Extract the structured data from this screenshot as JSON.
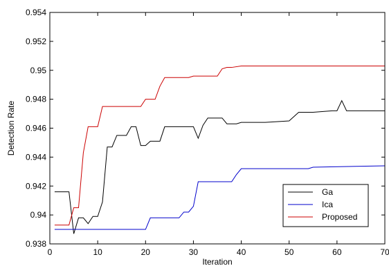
{
  "chart_data": {
    "type": "line",
    "xlabel": "Iteration",
    "ylabel": "Detection Rate",
    "xlim": [
      0,
      70
    ],
    "ylim": [
      0.938,
      0.954
    ],
    "xticks": [
      "0",
      "10",
      "20",
      "30",
      "40",
      "50",
      "60",
      "70"
    ],
    "yticks": [
      "0.938",
      "0.94",
      "0.942",
      "0.944",
      "0.946",
      "0.948",
      "0.95",
      "0.952",
      "0.954"
    ],
    "grid": false,
    "legend_position": "bottom-right",
    "series": [
      {
        "name": "Ga",
        "color": "#000000",
        "x": [
          1,
          4,
          5,
          6,
          7,
          8,
          9,
          10,
          11,
          12,
          13,
          14,
          15,
          16,
          17,
          18,
          19,
          20,
          21,
          22,
          23,
          24,
          25,
          30,
          31,
          32,
          33,
          36,
          37,
          38,
          39,
          40,
          45,
          50,
          52,
          55,
          59,
          60,
          61,
          62,
          70
        ],
        "y": [
          0.9416,
          0.9416,
          0.9387,
          0.9398,
          0.9398,
          0.9394,
          0.9399,
          0.9399,
          0.9409,
          0.9447,
          0.9447,
          0.9455,
          0.9455,
          0.9455,
          0.9461,
          0.9461,
          0.9448,
          0.9448,
          0.9451,
          0.9451,
          0.9451,
          0.9461,
          0.9461,
          0.9461,
          0.9453,
          0.9462,
          0.9467,
          0.9467,
          0.9463,
          0.9463,
          0.9463,
          0.9464,
          0.9464,
          0.9465,
          0.9471,
          0.9471,
          0.9472,
          0.9472,
          0.9479,
          0.9472,
          0.9472
        ]
      },
      {
        "name": "Ica",
        "color": "#0000cc",
        "x": [
          1,
          20,
          21,
          27,
          28,
          29,
          30,
          31,
          38,
          39,
          40,
          54,
          55,
          70
        ],
        "y": [
          0.939,
          0.939,
          0.9398,
          0.9398,
          0.9402,
          0.9402,
          0.9406,
          0.9423,
          0.9423,
          0.9428,
          0.9432,
          0.9432,
          0.9433,
          0.9434
        ]
      },
      {
        "name": "Proposed",
        "color": "#cc0000",
        "x": [
          1,
          4,
          5,
          6,
          7,
          8,
          9,
          10,
          11,
          12,
          19,
          20,
          22,
          23,
          24,
          25,
          29,
          30,
          35,
          36,
          37,
          38,
          40,
          70
        ],
        "y": [
          0.9393,
          0.9393,
          0.9405,
          0.9405,
          0.9443,
          0.9461,
          0.9461,
          0.9461,
          0.9475,
          0.9475,
          0.9475,
          0.948,
          0.948,
          0.9489,
          0.9495,
          0.9495,
          0.9495,
          0.9496,
          0.9496,
          0.9501,
          0.9502,
          0.9502,
          0.9503,
          0.9503
        ]
      }
    ]
  }
}
